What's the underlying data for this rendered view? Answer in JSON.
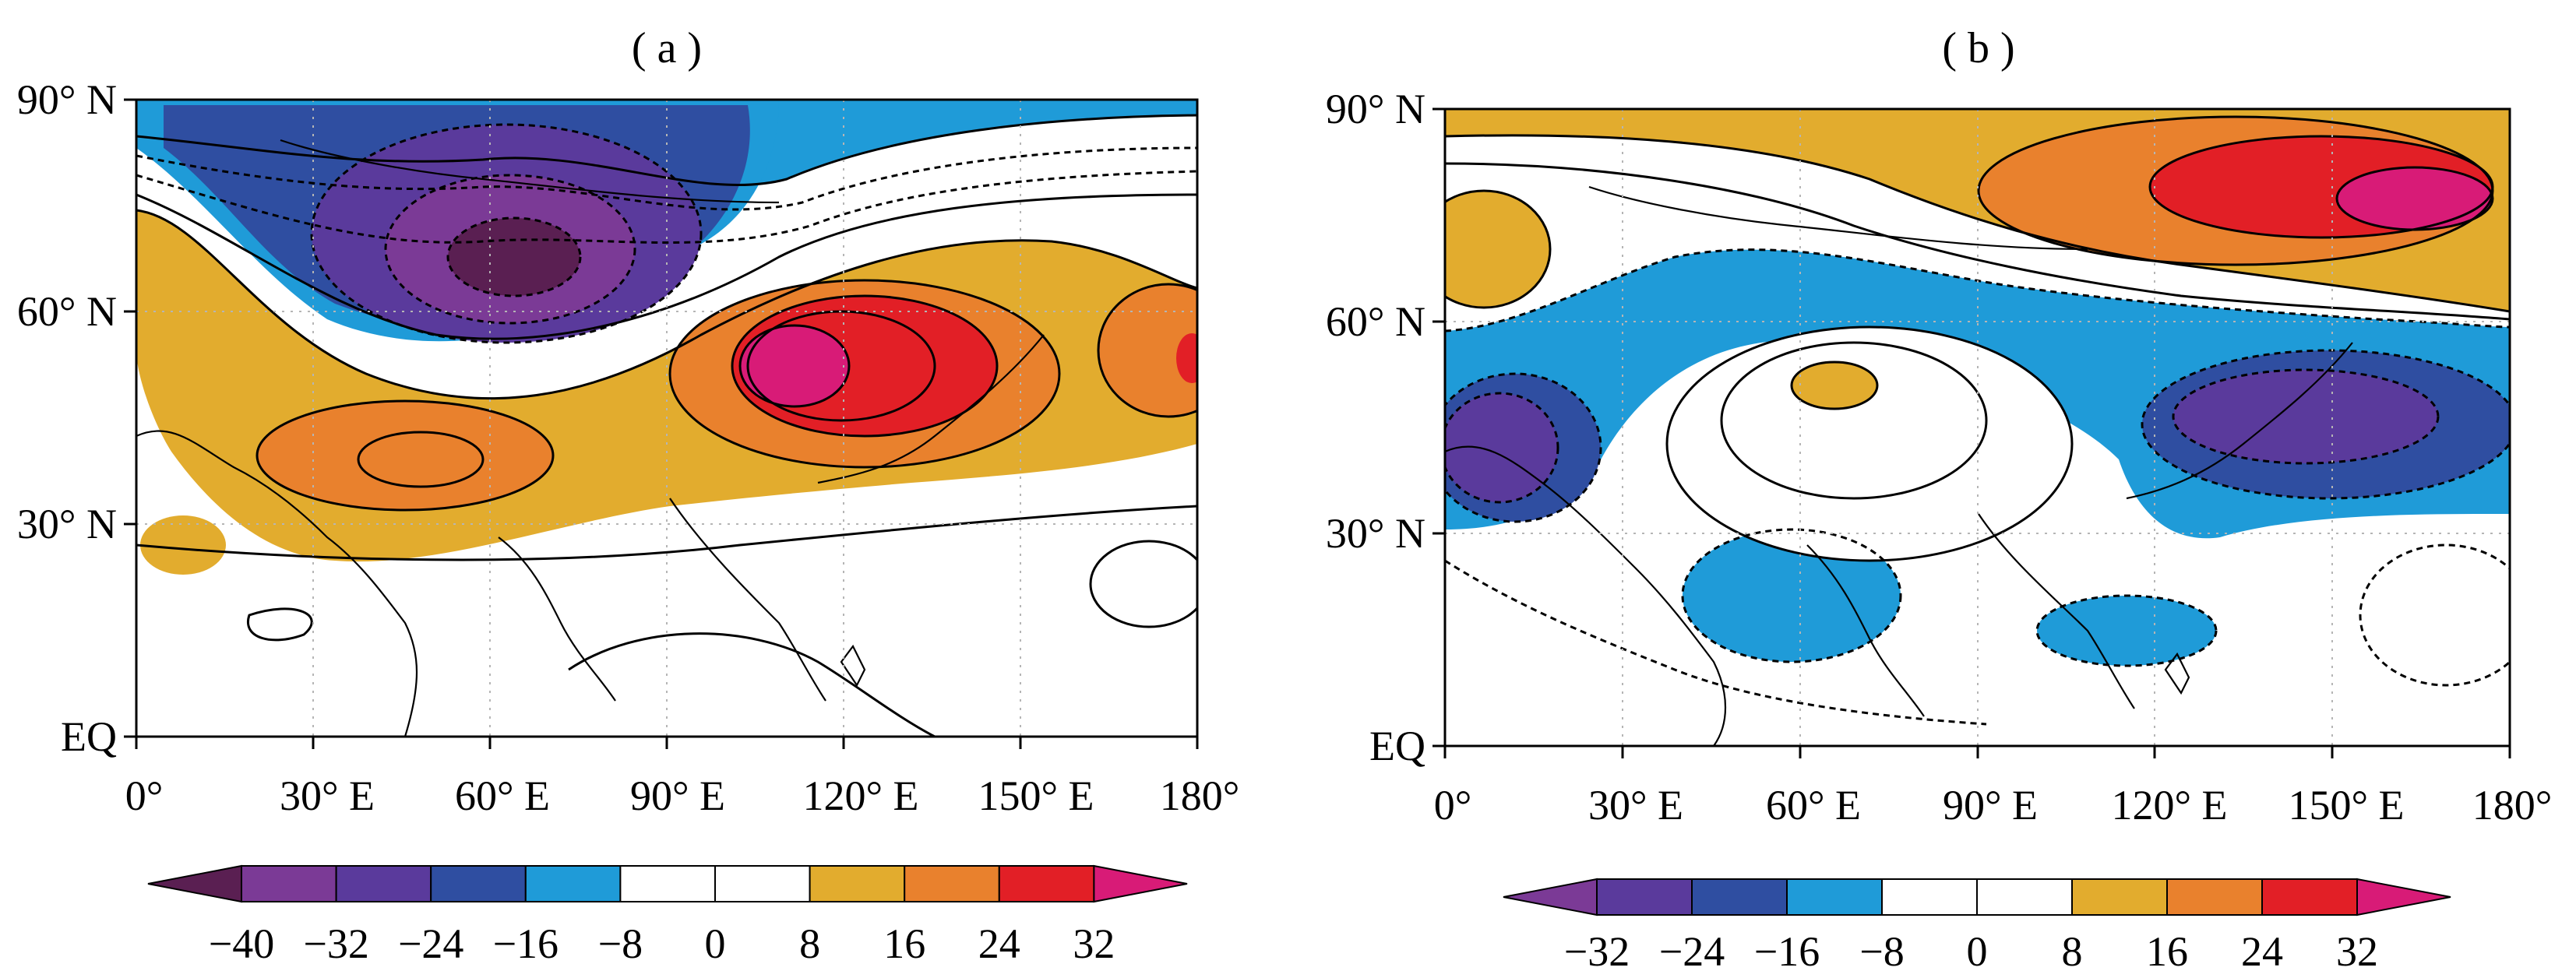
{
  "colors": {
    "dark_purple": "#5a1f52",
    "purple": "#7b3a96",
    "violet": "#5a3a9c",
    "blue": "#2f4ea1",
    "light_blue": "#1f9bd8",
    "white": "#ffffff",
    "gold": "#e2ac2e",
    "orange": "#e9812d",
    "red": "#e21f26",
    "magenta": "#d81b77",
    "grid": "#b5b5b5"
  },
  "panels": [
    {
      "label": "( a )",
      "lat_labels": [
        "90° N",
        "60° N",
        "30° N",
        "EQ"
      ],
      "lon_labels": [
        "0°",
        "30° E",
        "60° E",
        "90° E",
        "120° E",
        "150° E",
        "180°"
      ],
      "colorbar": {
        "ticks": [
          "−40",
          "−32",
          "−24",
          "−16",
          "−8",
          "0",
          "8",
          "16",
          "24",
          "32"
        ],
        "colors": [
          "dark_purple",
          "purple",
          "violet",
          "blue",
          "light_blue",
          "white",
          "white",
          "gold",
          "orange",
          "red",
          "magenta"
        ]
      }
    },
    {
      "label": "( b )",
      "lat_labels": [
        "90° N",
        "60° N",
        "30° N",
        "EQ"
      ],
      "lon_labels": [
        "0°",
        "30° E",
        "60° E",
        "90° E",
        "120° E",
        "150° E",
        "180°"
      ],
      "colorbar": {
        "ticks": [
          "−32",
          "−24",
          "−16",
          "−8",
          "0",
          "8",
          "16",
          "24",
          "32"
        ],
        "colors": [
          "purple",
          "violet",
          "blue",
          "light_blue",
          "white",
          "white",
          "gold",
          "orange",
          "red",
          "magenta"
        ]
      }
    }
  ]
}
